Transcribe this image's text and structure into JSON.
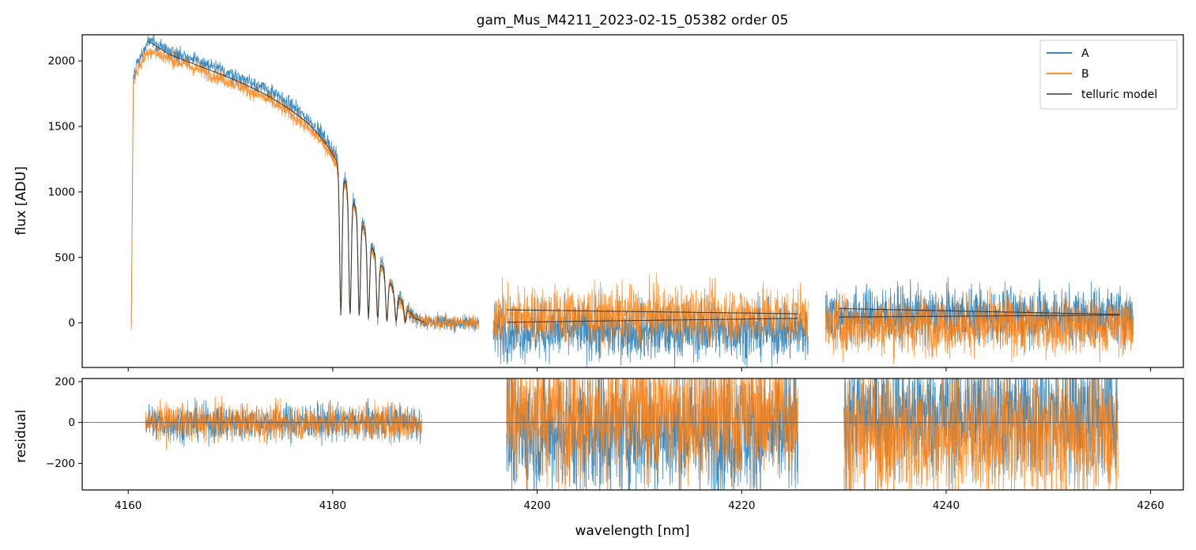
{
  "chart_data": [
    {
      "type": "line",
      "title": "gam_Mus_M4211_2023-02-15_05382  order 05",
      "xlabel": "",
      "ylabel": "flux [ADU]",
      "xlim": [
        4155.5,
        4263.2
      ],
      "ylim": [
        -340,
        2200
      ],
      "yticks": [
        0,
        500,
        1000,
        1500,
        2000
      ],
      "yticklabels": [
        "0",
        "500",
        "1000",
        "1500",
        "2000"
      ],
      "xticks": [
        4160,
        4180,
        4200,
        4220,
        4240,
        4260
      ],
      "grid": false,
      "legend": {
        "placement": "top-right",
        "entries": [
          "A",
          "B",
          "telluric model"
        ]
      },
      "series": [
        {
          "name": "A",
          "color": "#1f77b4",
          "segments": [
            {
              "x": [
                4160.3,
                4160.5,
                4161.0,
                4162.0,
                4164.0,
                4166.0,
                4168.0,
                4170.0,
                4172.0,
                4174.0,
                4176.0,
                4177.5,
                4178.5,
                4179.5,
                4180.3,
                4181.0,
                4182.0,
                4183.0,
                4184.0,
                4185.0,
                4186.0,
                4187.0,
                4188.0,
                4189.0,
                4192.0,
                4194.3
              ],
              "y": [
                -30,
                1900,
                2000,
                2150,
                2080,
                2020,
                1960,
                1900,
                1840,
                1760,
                1660,
                1560,
                1480,
                1380,
                1280,
                1150,
                950,
                760,
                560,
                420,
                250,
                150,
                40,
                10,
                0,
                0
              ],
              "noise": 30
            },
            {
              "x": [
                4195.7,
                4226.5
              ],
              "y": [
                -60,
                -60
              ],
              "noise": 110
            },
            {
              "x": [
                4228.2,
                4258.3
              ],
              "y": [
                60,
                60
              ],
              "noise": 110
            }
          ]
        },
        {
          "name": "B",
          "color": "#ff7f0e",
          "segments": [
            {
              "x": [
                4160.3,
                4160.5,
                4161.0,
                4162.0,
                4164.0,
                4166.0,
                4168.0,
                4170.0,
                4172.0,
                4174.0,
                4176.0,
                4177.5,
                4178.5,
                4179.5,
                4180.3,
                4181.0,
                4182.0,
                4183.0,
                4184.0,
                4185.0,
                4186.0,
                4187.0,
                4188.0,
                4189.0,
                4192.0,
                4194.3
              ],
              "y": [
                -30,
                1850,
                1950,
                2080,
                2020,
                1960,
                1900,
                1840,
                1770,
                1690,
                1590,
                1490,
                1420,
                1330,
                1230,
                1100,
                900,
                720,
                530,
                400,
                240,
                140,
                30,
                10,
                0,
                0
              ],
              "noise": 30
            },
            {
              "x": [
                4195.7,
                4226.5
              ],
              "y": [
                60,
                60
              ],
              "noise": 110
            },
            {
              "x": [
                4228.2,
                4258.3
              ],
              "y": [
                -20,
                -20
              ],
              "noise": 110
            }
          ]
        },
        {
          "name": "telluric model",
          "color": "#333333",
          "segments": [
            {
              "x": [
                4162.0,
                4164.0,
                4166.0,
                4168.0,
                4170.0,
                4172.0,
                4174.0,
                4176.0,
                4177.5,
                4178.5,
                4179.5,
                4180.3,
                4181.0,
                4182.0,
                4183.0,
                4184.0,
                4185.0,
                4186.0,
                4187.0,
                4188.0,
                4189.0
              ],
              "y": [
                2150,
                2050,
                1990,
                1930,
                1870,
                1800,
                1720,
                1620,
                1530,
                1450,
                1350,
                1250,
                1120,
                930,
                740,
                550,
                410,
                245,
                145,
                35,
                5
              ]
            },
            {
              "x": [
                4197.0,
                4225.5
              ],
              "y": [
                100,
                70
              ]
            },
            {
              "x": [
                4197.0,
                4225.5
              ],
              "y": [
                5,
                35
              ]
            },
            {
              "x": [
                4229.5,
                4257.0
              ],
              "y": [
                110,
                65
              ]
            },
            {
              "x": [
                4229.5,
                4257.0
              ],
              "y": [
                45,
                60
              ]
            }
          ],
          "absorption_lines": [
            4180.8,
            4181.7,
            4182.6,
            4183.5,
            4184.4,
            4185.3,
            4186.2,
            4187.1
          ]
        }
      ]
    },
    {
      "type": "line",
      "title": "",
      "xlabel": "wavelength [nm]",
      "ylabel": "residual",
      "xlim": [
        4155.5,
        4263.2
      ],
      "ylim": [
        -330,
        215
      ],
      "yticks": [
        -200,
        0,
        200
      ],
      "yticklabels": [
        "−200",
        "0",
        "200"
      ],
      "xticks": [
        4160,
        4180,
        4200,
        4220,
        4240,
        4260
      ],
      "xticklabels": [
        "4160",
        "4180",
        "4200",
        "4220",
        "4240",
        "4260"
      ],
      "zero_line": true,
      "grid": false,
      "series": [
        {
          "name": "A",
          "color": "#1f77b4",
          "segments": [
            {
              "x": [
                4161.7,
                4188.7
              ],
              "y": [
                0,
                0
              ],
              "noise": 45
            },
            {
              "x": [
                4197.0,
                4225.5
              ],
              "y": [
                -40,
                -40
              ],
              "noise": 160
            },
            {
              "x": [
                4230.0,
                4256.8
              ],
              "y": [
                40,
                40
              ],
              "noise": 160
            }
          ]
        },
        {
          "name": "B",
          "color": "#ff7f0e",
          "segments": [
            {
              "x": [
                4161.7,
                4188.7
              ],
              "y": [
                0,
                0
              ],
              "noise": 45
            },
            {
              "x": [
                4197.0,
                4225.5
              ],
              "y": [
                40,
                40
              ],
              "noise": 160
            },
            {
              "x": [
                4230.0,
                4256.8
              ],
              "y": [
                -60,
                -60
              ],
              "noise": 160
            }
          ]
        }
      ]
    }
  ]
}
